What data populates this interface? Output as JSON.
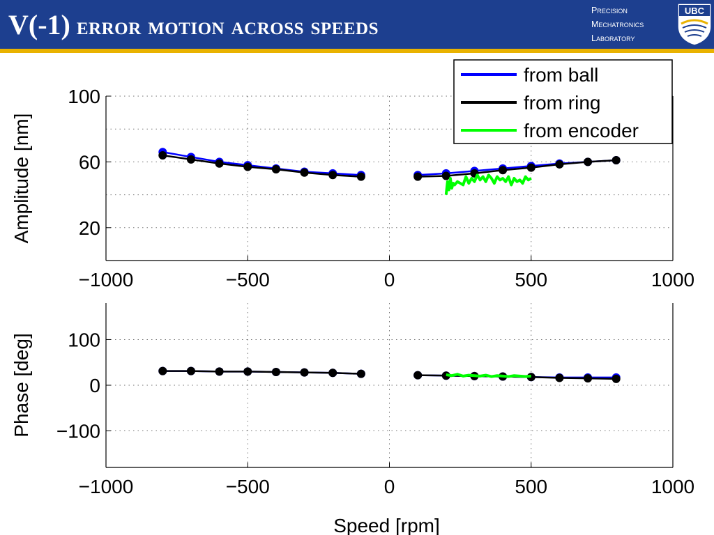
{
  "slide": {
    "title_lead": "V(-1)",
    "title_rest": "error motion across speeds",
    "lab_lines": [
      "Precision",
      "Mechatronics",
      "Laboratory"
    ],
    "logo_text": "UBC"
  },
  "colors": {
    "header_bg": "#1d3f8f",
    "header_stripe": "#e9b200",
    "ball": "#0000ff",
    "ring": "#000000",
    "encoder": "#00ff00"
  },
  "chart_data": [
    {
      "type": "line",
      "title": "",
      "xlabel": "",
      "ylabel": "Amplitude [nm]",
      "xlim": [
        -1000,
        1000
      ],
      "ylim": [
        0,
        100
      ],
      "xticks": [
        -1000,
        -500,
        0,
        500,
        1000
      ],
      "yticks": [
        20,
        60,
        100
      ],
      "grid": true,
      "legend": {
        "placement": "top-right",
        "entries": [
          "from ball",
          "from ring",
          "from encoder"
        ]
      },
      "series": [
        {
          "name": "from ball",
          "color": "#0000ff",
          "segments": [
            {
              "x": [
                -800,
                -700,
                -600,
                -500,
                -400,
                -300,
                -200,
                -100
              ],
              "y": [
                66,
                63,
                60,
                58,
                56,
                54,
                53,
                52
              ]
            },
            {
              "x": [
                100,
                200,
                300,
                400,
                500,
                600,
                700,
                800
              ],
              "y": [
                52,
                53,
                54.5,
                56,
                57.5,
                59,
                60,
                61
              ]
            }
          ]
        },
        {
          "name": "from ring",
          "color": "#000000",
          "segments": [
            {
              "x": [
                -800,
                -700,
                -600,
                -500,
                -400,
                -300,
                -200,
                -100
              ],
              "y": [
                64,
                61.5,
                59,
                57,
                55.5,
                53.5,
                52,
                51
              ]
            },
            {
              "x": [
                100,
                200,
                300,
                400,
                500,
                600,
                700,
                800
              ],
              "y": [
                51,
                51.5,
                53,
                55,
                56.5,
                58.5,
                60,
                61
              ]
            }
          ]
        },
        {
          "name": "from encoder",
          "color": "#00ff00",
          "segments": [
            {
              "x": [
                200,
                205,
                210,
                215,
                220,
                225,
                230,
                240,
                250,
                260,
                270,
                280,
                290,
                300,
                310,
                320,
                330,
                340,
                350,
                360,
                370,
                380,
                390,
                400,
                410,
                420,
                430,
                440,
                450,
                460,
                470,
                480,
                490,
                500
              ],
              "y": [
                40,
                48,
                43,
                50,
                44,
                47,
                46,
                48,
                47,
                46,
                51,
                47,
                50,
                48,
                52,
                49,
                51,
                48,
                52,
                50,
                47,
                51,
                49,
                50,
                48,
                51,
                46,
                50,
                48,
                49,
                47,
                51,
                49,
                50
              ]
            }
          ]
        }
      ]
    },
    {
      "type": "line",
      "title": "",
      "xlabel": "Speed [rpm]",
      "ylabel": "Phase [deg]",
      "xlim": [
        -1000,
        1000
      ],
      "ylim": [
        -180,
        180
      ],
      "xticks": [
        -1000,
        -500,
        0,
        500,
        1000
      ],
      "yticks": [
        -100,
        0,
        100
      ],
      "grid": true,
      "series": [
        {
          "name": "from ball",
          "color": "#0000ff",
          "segments": [
            {
              "x": [
                -800,
                -700,
                -600,
                -500,
                -400,
                -300,
                -200,
                -100
              ],
              "y": [
                31,
                31,
                30,
                30,
                29,
                28,
                27,
                25
              ]
            },
            {
              "x": [
                100,
                200,
                300,
                400,
                500,
                600,
                700,
                800
              ],
              "y": [
                22,
                21,
                20,
                19,
                18,
                17,
                17,
                17
              ]
            }
          ]
        },
        {
          "name": "from ring",
          "color": "#000000",
          "segments": [
            {
              "x": [
                -800,
                -700,
                -600,
                -500,
                -400,
                -300,
                -200,
                -100
              ],
              "y": [
                31,
                31,
                30,
                30,
                29,
                28,
                27,
                25
              ]
            },
            {
              "x": [
                100,
                200,
                300,
                400,
                500,
                600,
                700,
                800
              ],
              "y": [
                22,
                21,
                20,
                19,
                18,
                16,
                15,
                14
              ]
            }
          ]
        },
        {
          "name": "from encoder",
          "color": "#00ff00",
          "segments": [
            {
              "x": [
                200,
                220,
                240,
                260,
                280,
                300,
                320,
                340,
                360,
                380,
                400,
                420,
                440,
                460,
                480,
                500
              ],
              "y": [
                23,
                21,
                24,
                20,
                22,
                21,
                20,
                22,
                19,
                21,
                20,
                19,
                21,
                20,
                19,
                20
              ]
            }
          ]
        }
      ]
    }
  ]
}
